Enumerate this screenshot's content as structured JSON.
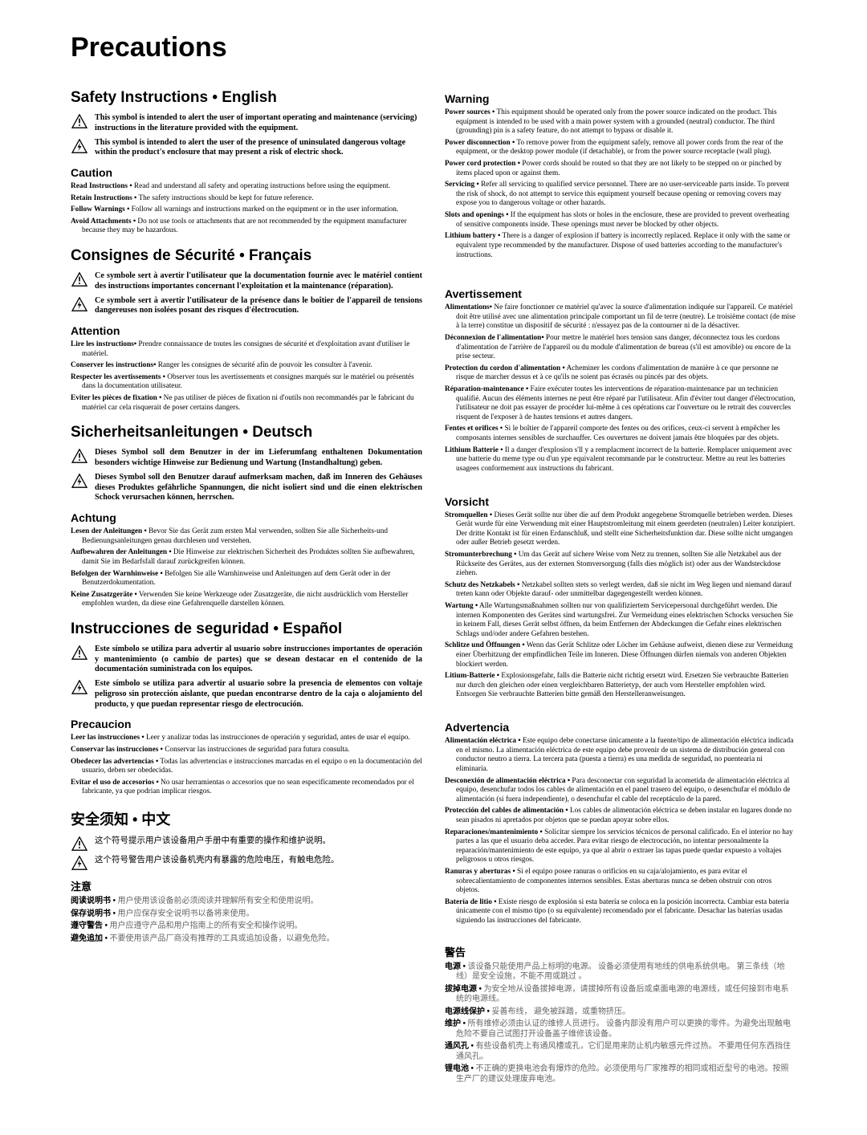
{
  "title": "Precautions",
  "en": {
    "heading": "Safety Instructions • English",
    "sym1": "This symbol is intended to alert the user of important operating and maintenance (servicing) instructions in the literature provided with the equipment.",
    "sym2": "This symbol is intended to alert the user of the presence of uninsulated dangerous voltage within the product's enclosure that may present a risk of electric shock.",
    "caution_h": "Caution",
    "caution": [
      {
        "b": "Read Instructions •",
        "t": " Read and understand all safety and operating instructions before using the equipment."
      },
      {
        "b": "Retain Instructions •",
        "t": " The safety instructions should be kept for future reference."
      },
      {
        "b": "Follow Warnings •",
        "t": " Follow all warnings and instructions marked on the equipment or in the user information."
      },
      {
        "b": "Avoid Attachments •",
        "t": " Do not use tools or attachments that are not recommended by the equipment manufacturer because they may be hazardous."
      }
    ],
    "warning_h": "Warning",
    "warning": [
      {
        "b": "Power sources •",
        "t": " This equipment should be operated only from the power source indicated on the product. This equipment is intended to be used with a main power system with a grounded (neutral) conductor. The third (grounding) pin is a safety feature, do not attempt to bypass or disable it."
      },
      {
        "b": "Power disconnection •",
        "t": " To remove power from the equipment safely, remove all power cords from the rear of the equipment, or the desktop power module (if detachable), or from the power source receptacle (wall plug)."
      },
      {
        "b": "Power cord protection •",
        "t": " Power cords should be routed so that they are not likely to be stepped on or pinched by items placed upon or against them."
      },
      {
        "b": "Servicing •",
        "t": " Refer all servicing to qualified service personnel. There are no user-serviceable parts inside. To prevent the risk of shock, do not attempt to service this equipment yourself because opening or removing covers may expose you to dangerous voltage or other hazards."
      },
      {
        "b": "Slots and openings •",
        "t": " If the equipment has slots or holes in the enclosure, these are provided to prevent overheating of sensitive components inside. These openings must never be blocked by other objects."
      },
      {
        "b": "Lithium battery •",
        "t": " There is a danger of explosion if battery is incorrectly replaced. Replace it only with the same or equivalent type recommended by the manufacturer. Dispose of used batteries according to the manufacturer's instructions."
      }
    ]
  },
  "fr": {
    "heading": "Consignes de Sécurité • Français",
    "sym1": "Ce symbole sert à avertir l'utilisateur que la documentation fournie avec le matériel contient des instructions importantes concernant l'exploitation et la maintenance (réparation).",
    "sym2": "Ce symbole sert à avertir l'utilisateur de la présence dans le boîtier de l'appareil de tensions dangereuses non isolées posant des risques d'électrocution.",
    "caution_h": "Attention",
    "caution": [
      {
        "b": "Lire les instructions•",
        "t": " Prendre connaissance de toutes les consignes de sécurité et d'exploitation avant d'utiliser le matériel."
      },
      {
        "b": "Conserver les instructions•",
        "t": " Ranger les consignes de sécurité afin de pouvoir les consulter à l'avenir."
      },
      {
        "b": "Respecter les avertissements •",
        "t": " Observer tous les avertissements et consignes marqués sur le matériel ou présentés dans la documentation utilisateur."
      },
      {
        "b": "Eviter les pièces de fixation •",
        "t": " Ne pas utiliser de pièces de fixation ni d'outils non recommandés par le fabricant du matériel car cela risquerait de poser certains dangers."
      }
    ],
    "warning_h": "Avertissement",
    "warning": [
      {
        "b": "Alimentations•",
        "t": " Ne faire fonctionner ce matériel qu'avec la source d'alimentation indiquée sur l'appareil. Ce matériel doit être utilisé avec une alimentation principale comportant un fil de terre (neutre). Le troisième contact (de mise à la terre) constitue un dispositif de sécurité : n'essayez pas de la contourner ni de la désactiver."
      },
      {
        "b": "Déconnexion de l'alimentation•",
        "t": " Pour mettre le matériel hors tension sans danger, déconnectez tous les cordons d'alimentation de l'arrière de l'appareil ou du module d'alimentation de bureau (s'il est amovible) ou encore de la prise secteur."
      },
      {
        "b": "Protection du cordon d'alimentation •",
        "t": " Acheminer les cordons d'alimentation de manière à ce que personne ne risque de marcher dessus et à ce qu'ils ne soient pas écrasés ou pincés par des objets."
      },
      {
        "b": "Réparation-maintenance •",
        "t": " Faire exécuter toutes les interventions de réparation-maintenance par un technicien qualifié. Aucun des éléments internes ne peut être réparé par l'utilisateur. Afin d'éviter tout danger d'électrocution, l'utilisateur ne doit pas essayer de procéder lui-même à ces opérations car l'ouverture ou le retrait des couvercles risquent de l'exposer à de hautes tensions et autres dangers."
      },
      {
        "b": "Fentes et orifices •",
        "t": " Si le boîtier de l'appareil comporte des fentes ou des orifices, ceux-ci servent à empêcher les composants internes sensibles de surchauffer. Ces ouvertures ne doivent jamais être bloquées par des objets."
      },
      {
        "b": "Lithium Batterie •",
        "t": " Il a danger d'explosion s'll y a remplacment incorrect de la batterie. Remplacer uniquement avec une batterie du meme type ou d'un ype equivalent recommande par le constructeur. Mettre au reut les batteries usagees conformement aux instructions du fabricant."
      }
    ]
  },
  "de": {
    "heading": "Sicherheitsanleitungen • Deutsch",
    "sym1": "Dieses Symbol soll dem Benutzer in der im Lieferumfang enthaltenen Dokumentation besonders wichtige Hinweise zur Bedienung und Wartung (Instandhaltung) geben.",
    "sym2": "Dieses Symbol soll den Benutzer darauf aufmerksam machen, daß im Inneren des Gehäuses dieses Produktes gefährliche Spannungen, die nicht isoliert sind und die einen elektrischen Schock verursachen können, herrschen.",
    "caution_h": "Achtung",
    "caution": [
      {
        "b": "Lesen der Anleitungen •",
        "t": " Bevor Sie das Gerät zum ersten Mal verwenden, sollten Sie alle Sicherheits-und Bedienungsanleitungen genau durchlesen und verstehen."
      },
      {
        "b": "Aufbewahren der Anleitungen •",
        "t": " Die Hinweise zur elektrischen Sicherheit des Produktes sollten Sie aufbewahren, damit Sie im Bedarfsfall darauf zurückgreifen können."
      },
      {
        "b": "Befolgen der Warnhinweise •",
        "t": " Befolgen Sie alle Warnhinweise und Anleitungen auf dem Gerät oder in der Benutzerdokumentation."
      },
      {
        "b": "Keine Zusatzgeräte •",
        "t": " Verwenden Sie keine Werkzeuge oder Zusatzgeräte, die nicht ausdrücklich vom Hersteller empfohlen wurden, da diese eine Gefahrenquelle darstellen können."
      }
    ],
    "warning_h": "Vorsicht",
    "warning": [
      {
        "b": "Stromquellen •",
        "t": " Dieses Gerät sollte nur über die auf dem Produkt angegebene Stromquelle betrieben werden. Dieses Gerät wurde für eine Verwendung mit einer Hauptstromleitung mit einem geerdeten (neutralen) Leiter konzipiert. Der dritte Kontakt ist für einen Erdanschluß, und stellt eine Sicherheitsfunktion dar. Diese sollte nicht umgangen oder außer Betrieb gesetzt werden."
      },
      {
        "b": "Stromunterbrechung •",
        "t": " Um das Gerät auf sichere Weise vom Netz zu trennen, sollten Sie alle Netzkabel aus der Rückseite des Gerätes, aus der externen Stomversorgung (falls dies möglich ist) oder aus der Wandsteckdose ziehen."
      },
      {
        "b": "Schutz des Netzkabels •",
        "t": " Netzkabel sollten stets so verlegt werden, daß sie nicht im Weg liegen und niemand darauf treten kann oder Objekte darauf- oder unmittelbar dagegengestellt werden können."
      },
      {
        "b": "Wartung •",
        "t": " Alle Wartungsmaßnahmen sollten nur von qualifiziertem Servicepersonal durchgeführt werden. Die internen Komponenten des Gerätes sind wartungsfrei. Zur Vermeidung eines elektrischen Schocks versuchen Sie in keinem Fall, dieses Gerät selbst öffnen, da beim Entfernen der Abdeckungen die Gefahr eines elektrischen Schlags und/oder andere Gefahren bestehen."
      },
      {
        "b": "Schlitze und Öffnungen •",
        "t": " Wenn das Gerät Schlitze oder Löcher im Gehäuse aufweist, dienen diese zur Vermeidung einer Überhitzung der empfindlichen Teile im Inneren. Diese Öffnungen dürfen niemals von anderen Objekten blockiert werden."
      },
      {
        "b": "Litium-Batterie •",
        "t": " Explosionsgefahr, falls die Batterie nicht richtig ersetzt wird. Ersetzen Sie verbrauchte Batterien nur durch den gleichen oder einen vergleichbaren Batterietyp, der auch vom Hersteller empfohlen wird. Entsorgen Sie verbrauchte Batterien bitte gemäß den Herstelleranweisungen."
      }
    ]
  },
  "es": {
    "heading": "Instrucciones de seguridad • Español",
    "sym1": "Este símbolo se utiliza para advertir al usuario sobre instrucciones importantes de operación y mantenimiento (o cambio de partes) que se desean destacar en el contenido de la documentación suministrada con los equipos.",
    "sym2": "Este símbolo se utiliza para advertir al usuario sobre la presencia de elementos con voltaje peligroso sin protección aislante, que puedan encontrarse dentro de la caja o alojamiento del producto, y que puedan representar riesgo de electrocución.",
    "caution_h": "Precaucion",
    "caution": [
      {
        "b": "Leer las instrucciones •",
        "t": " Leer y analizar todas las instrucciones de operación y seguridad, antes de usar el equipo."
      },
      {
        "b": "Conservar las instrucciones •",
        "t": " Conservar las instrucciones de seguridad para futura consulta."
      },
      {
        "b": "Obedecer las advertencias •",
        "t": " Todas las advertencias e instrucciones marcadas en el equipo o en la documentación del usuario, deben ser obedecidas."
      },
      {
        "b": "Evitar el uso de accesorios •",
        "t": " No usar herramientas o accesorios que no sean especificamente recomendados por el fabricante, ya que podrian implicar riesgos."
      }
    ],
    "warning_h": "Advertencia",
    "warning": [
      {
        "b": "Alimentación eléctrica •",
        "t": " Este equipo debe conectarse únicamente a la fuente/tipo de alimentación eléctrica indicada en el mismo. La alimentación eléctrica de este equipo debe provenir de un sistema de distribución general con conductor neutro a tierra. La tercera pata (puesta a tierra) es una medida de seguridad, no puentearia ni eliminaria."
      },
      {
        "b": "Desconexión de alimentación eléctrica •",
        "t": " Para desconectar con seguridad la acometida de alimentación eléctrica al equipo, desenchufar todos los cables de alimentación en el panel trasero del equipo, o desenchufar el módulo de alimentación (si fuera independiente), o desenchufar el cable del receptáculo de la pared."
      },
      {
        "b": "Protección del cables de alimentación •",
        "t": " Los cables de alimentación eléctrica se deben instalar en lugares donde no sean pisados ni apretados por objetos que se puedan apoyar sobre ellos."
      },
      {
        "b": "Reparaciones/mantenimiento •",
        "t": " Solicitar siempre los servicios técnicos de personal calificado. En el interior no hay partes a las que el usuario deba acceder. Para evitar riesgo de electrocución, no intentar personalmente la reparación/mantenimiento de este equipo, ya que al abrir o extraer las tapas puede quedar expuesto a voltajes peligrosos u otros riesgos."
      },
      {
        "b": "Ranuras y aberturas •",
        "t": " Si el equipo posee ranuras o orificios en su caja/alojamiento, es para evitar el sobrecalientamiento de componentes internos sensibles. Estas aberturas nunca se deben obstruir con otros objetos."
      },
      {
        "b": "Batería de litio •",
        "t": " Existe riesgo de explosión si esta batería se coloca en la posición incorrecta. Cambiar esta batería únicamente con el mismo tipo (o su equivalente) recomendado por el fabricante. Desachar las baterías usadas siguiendo las instrucciones del fabricante."
      }
    ]
  },
  "zh": {
    "heading": "安全须知  •  中文",
    "sym1": "这个符号提示用户该设备用户手册中有重要的操作和维护说明。",
    "sym2": "这个符号警告用户该设备机壳内有暴露的危险电压，有触电危险。",
    "caution_h": "注意",
    "caution": [
      {
        "b": "阅读说明书 •",
        "t": " 用户使用该设备前必须阅读并理解所有安全和使用说明。"
      },
      {
        "b": "保存说明书 •",
        "t": " 用户应保存安全说明书以备将来使用。"
      },
      {
        "b": "遵守警告 •",
        "t": " 用户应遵守产品和用户指南上的所有安全和操作说明。"
      },
      {
        "b": "避免追加 •",
        "t": " 不要使用该产品厂商没有推荐的工具或追加设备，以避免危险。"
      }
    ],
    "warning_h": "警告",
    "warning": [
      {
        "b": "电源 •",
        "t": " 该设备只能使用产品上标明的电源。 设备必须使用有地线的供电系统供电。 第三条线（地线）是安全设施，不能不用或跳过 。"
      },
      {
        "b": "拔掉电源 •",
        "t": " 为安全地从设备拔掉电源，请拔掉所有设备后或桌面电源的电源线，或任何接到市电系统的电源线。"
      },
      {
        "b": "电源线保护 •",
        "t": " 妥善布线， 避免被踩踏，或重物挤压。"
      },
      {
        "b": "维护 •",
        "t": " 所有维修必须由认证的维修人员进行。 设备内部没有用户可以更换的零件。为避免出现触电危险不要自己试图打开设备盖子维修该设备。"
      },
      {
        "b": "通风孔 •",
        "t": " 有些设备机壳上有通风槽或孔，它们是用来防止机内敏感元件过热。 不要用任何东西挡住通风孔。"
      },
      {
        "b": "锂电池 •",
        "t": " 不正确的更换电池会有爆炸的危险。必须使用与厂家推荐的相同或相近型号的电池。按照生产厂的建议处理废弃电池。"
      }
    ]
  }
}
